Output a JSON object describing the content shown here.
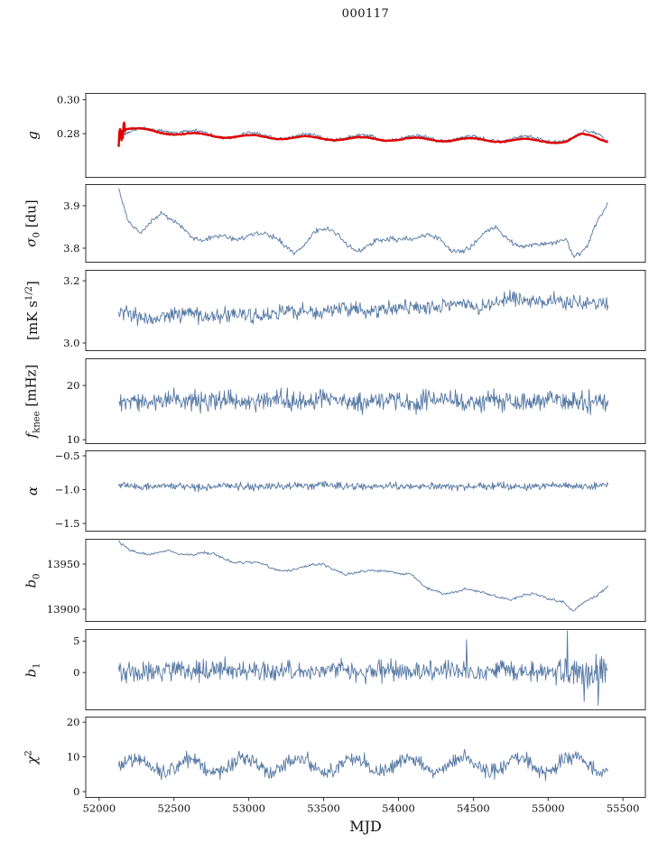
{
  "figure": {
    "title": "000117",
    "xlabel": "MJD"
  },
  "colors": {
    "line": "#5578a4",
    "smooth": "#e00000",
    "axis": "#000000",
    "text": "#111111"
  },
  "chart_data": {
    "type": "line",
    "title": "000117",
    "x_axis": {
      "label": "MJD",
      "lim": [
        51910,
        55650
      ],
      "tick_values": [
        52000,
        52500,
        53000,
        53500,
        54000,
        54500,
        55000,
        55500
      ],
      "tick_labels": [
        "52000",
        "52500",
        "53000",
        "53500",
        "54000",
        "54500",
        "55000",
        "55500"
      ]
    },
    "panels": [
      {
        "name": "g",
        "ylabel_html": "<i>g</i>",
        "ylim": [
          0.254,
          0.304
        ],
        "yticks": {
          "values": [
            0.28,
            0.3
          ],
          "labels": [
            "0.28",
            "0.30"
          ]
        },
        "series": [
          {
            "name": "daily",
            "color": "#5578a4",
            "lw": 0.9,
            "n": 650,
            "x0": 52130,
            "x1": 55400,
            "period": 365.25,
            "phase": 52200,
            "osc": 0.0016,
            "noise": 0.0006,
            "keypoints": [
              [
                52130,
                0.2805
              ],
              [
                52300,
                0.2815
              ],
              [
                52450,
                0.2825
              ],
              [
                52700,
                0.2795
              ],
              [
                53000,
                0.279
              ],
              [
                53500,
                0.278
              ],
              [
                54000,
                0.2775
              ],
              [
                54600,
                0.277
              ],
              [
                55000,
                0.2768
              ],
              [
                55150,
                0.276
              ],
              [
                55250,
                0.28
              ],
              [
                55330,
                0.281
              ],
              [
                55400,
                0.277
              ]
            ]
          },
          {
            "name": "smoothed",
            "color": "#e00000",
            "lw": 2.4,
            "n": 700,
            "x0": 52130,
            "x1": 55400,
            "period": 365.25,
            "phase": 52200,
            "osc": 0.001,
            "noise": 0.00015,
            "burst": [
              52128,
              52172,
              0.0075
            ],
            "keypoints": [
              [
                52130,
                0.278
              ],
              [
                52180,
                0.283
              ],
              [
                52400,
                0.281
              ],
              [
                52700,
                0.279
              ],
              [
                53000,
                0.2782
              ],
              [
                53500,
                0.2772
              ],
              [
                54000,
                0.2768
              ],
              [
                54500,
                0.2763
              ],
              [
                55000,
                0.2758
              ],
              [
                55120,
                0.2752
              ],
              [
                55220,
                0.279
              ],
              [
                55300,
                0.2785
              ],
              [
                55400,
                0.276
              ]
            ]
          }
        ]
      },
      {
        "name": "sigma0",
        "ylabel_html": "<i>&#963;</i><sub>0</sub> [du]",
        "ylim": [
          3.766,
          3.951
        ],
        "yticks": {
          "values": [
            3.8,
            3.9
          ],
          "labels": [
            "3.8",
            "3.9"
          ]
        },
        "series": [
          {
            "name": "sigma0",
            "color": "#5578a4",
            "lw": 0.9,
            "n": 520,
            "x0": 52130,
            "x1": 55400,
            "period": 365.25,
            "phase": 52320,
            "osc": 0.012,
            "noise": 0.0035,
            "keypoints": [
              [
                52130,
                3.935
              ],
              [
                52200,
                3.87
              ],
              [
                52280,
                3.845
              ],
              [
                52420,
                3.868
              ],
              [
                52550,
                3.86
              ],
              [
                52700,
                3.815
              ],
              [
                52850,
                3.822
              ],
              [
                53000,
                3.84
              ],
              [
                53150,
                3.818
              ],
              [
                53300,
                3.8
              ],
              [
                53450,
                3.835
              ],
              [
                53600,
                3.83
              ],
              [
                53750,
                3.8
              ],
              [
                53900,
                3.81
              ],
              [
                54050,
                3.835
              ],
              [
                54200,
                3.822
              ],
              [
                54350,
                3.8
              ],
              [
                54500,
                3.81
              ],
              [
                54650,
                3.84
              ],
              [
                54800,
                3.818
              ],
              [
                54950,
                3.795
              ],
              [
                55050,
                3.81
              ],
              [
                55120,
                3.835
              ],
              [
                55170,
                3.79
              ],
              [
                55260,
                3.8
              ],
              [
                55330,
                3.85
              ],
              [
                55400,
                3.9
              ]
            ]
          }
        ]
      },
      {
        "name": "white-noise-level",
        "ylabel_html": "[mK s<sup>1/2</sup>]",
        "ylim": [
          2.974,
          3.235
        ],
        "yticks": {
          "values": [
            3.0,
            3.2
          ],
          "labels": [
            "3.0",
            "3.2"
          ]
        },
        "series": [
          {
            "name": "wn",
            "color": "#5578a4",
            "lw": 0.9,
            "n": 700,
            "x0": 52130,
            "x1": 55400,
            "period": 365.25,
            "phase": 52100,
            "osc": 0.006,
            "noise": 0.015,
            "keypoints": [
              [
                52130,
                3.095
              ],
              [
                52300,
                3.08
              ],
              [
                52600,
                3.09
              ],
              [
                53000,
                3.088
              ],
              [
                53400,
                3.1
              ],
              [
                53800,
                3.105
              ],
              [
                54200,
                3.115
              ],
              [
                54600,
                3.128
              ],
              [
                54900,
                3.138
              ],
              [
                55150,
                3.128
              ],
              [
                55400,
                3.13
              ]
            ]
          }
        ]
      },
      {
        "name": "fknee",
        "ylabel_html": "<i>f</i><sub>knee</sub> [mHz]",
        "ylim": [
          9.2,
          25
        ],
        "yticks": {
          "values": [
            10,
            20
          ],
          "labels": [
            "10",
            "20"
          ]
        },
        "series": [
          {
            "name": "fknee",
            "color": "#5578a4",
            "lw": 0.9,
            "n": 700,
            "x0": 52130,
            "x1": 55400,
            "period": 365.25,
            "phase": 52000,
            "osc": 0.25,
            "noise": 1.15,
            "keypoints": [
              [
                52130,
                17.2
              ],
              [
                55400,
                17.0
              ]
            ]
          }
        ]
      },
      {
        "name": "alpha",
        "ylabel_html": "<i>&#945;</i>",
        "ylim": [
          -1.62,
          -0.42
        ],
        "yticks": {
          "values": [
            -0.5,
            -1.0,
            -1.5
          ],
          "labels": [
            "&#8722;0.5",
            "&#8722;1.0",
            "&#8722;1.5"
          ]
        },
        "series": [
          {
            "name": "alpha",
            "color": "#5578a4",
            "lw": 0.9,
            "n": 700,
            "x0": 52130,
            "x1": 55400,
            "period": 365.25,
            "phase": 52000,
            "osc": 0.008,
            "noise": 0.034,
            "keypoints": [
              [
                52130,
                -0.952
              ],
              [
                55400,
                -0.945
              ]
            ]
          }
        ]
      },
      {
        "name": "b0",
        "ylabel_html": "<i>b</i><sub>0</sub>",
        "ylim": [
          13886,
          13978
        ],
        "yticks": {
          "values": [
            13900,
            13950
          ],
          "labels": [
            "13900",
            "13950"
          ]
        },
        "series": [
          {
            "name": "b0",
            "color": "#5578a4",
            "lw": 0.9,
            "n": 520,
            "x0": 52130,
            "x1": 55400,
            "period": 365.25,
            "phase": 52250,
            "osc": 1.5,
            "noise": 0.9,
            "keypoints": [
              [
                52130,
                13976
              ],
              [
                52230,
                13964
              ],
              [
                52330,
                13959
              ],
              [
                52470,
                13966
              ],
              [
                52600,
                13960
              ],
              [
                52750,
                13961
              ],
              [
                52900,
                13953
              ],
              [
                53050,
                13951
              ],
              [
                53200,
                13943
              ],
              [
                53350,
                13946
              ],
              [
                53500,
                13949
              ],
              [
                53650,
                13940
              ],
              [
                53800,
                13941
              ],
              [
                53950,
                13943
              ],
              [
                54080,
                13939
              ],
              [
                54180,
                13922
              ],
              [
                54300,
                13918
              ],
              [
                54450,
                13922
              ],
              [
                54600,
                13916
              ],
              [
                54750,
                13912
              ],
              [
                54900,
                13916
              ],
              [
                55000,
                13912
              ],
              [
                55100,
                13910
              ],
              [
                55170,
                13898
              ],
              [
                55260,
                13908
              ],
              [
                55330,
                13915
              ],
              [
                55400,
                13927
              ]
            ]
          }
        ]
      },
      {
        "name": "b1",
        "ylabel_html": "<i>b</i><sub>1</sub>",
        "ylim": [
          -6,
          6.9
        ],
        "yticks": {
          "values": [
            0,
            5
          ],
          "labels": [
            "0",
            "5"
          ]
        },
        "series": [
          {
            "name": "b1",
            "color": "#5578a4",
            "lw": 0.9,
            "n": 700,
            "x0": 52130,
            "x1": 55400,
            "period": 365.25,
            "phase": 52000,
            "osc": 0.15,
            "noise": 0.95,
            "burst": [
              55040,
              55400,
              1.6
            ],
            "spikes": [
              [
                54455,
                5.2
              ],
              [
                55130,
                6.6
              ],
              [
                55240,
                -4.6
              ],
              [
                55335,
                -5.2
              ]
            ],
            "keypoints": [
              [
                52130,
                0.3
              ],
              [
                55400,
                0.2
              ]
            ]
          }
        ]
      },
      {
        "name": "chi2",
        "ylabel_html": "<i>&#967;</i><sup>2</sup>",
        "ylim": [
          -1.8,
          21.6
        ],
        "yticks": {
          "values": [
            0,
            10,
            20
          ],
          "labels": [
            "0",
            "10",
            "20"
          ]
        },
        "series": [
          {
            "name": "chi2",
            "color": "#5578a4",
            "lw": 0.9,
            "n": 700,
            "x0": 52130,
            "x1": 55400,
            "period": 365.25,
            "phase": 52150,
            "osc": 2.1,
            "noise": 1.25,
            "keypoints": [
              [
                52130,
                7.3
              ],
              [
                55400,
                8.0
              ]
            ]
          }
        ]
      }
    ]
  }
}
